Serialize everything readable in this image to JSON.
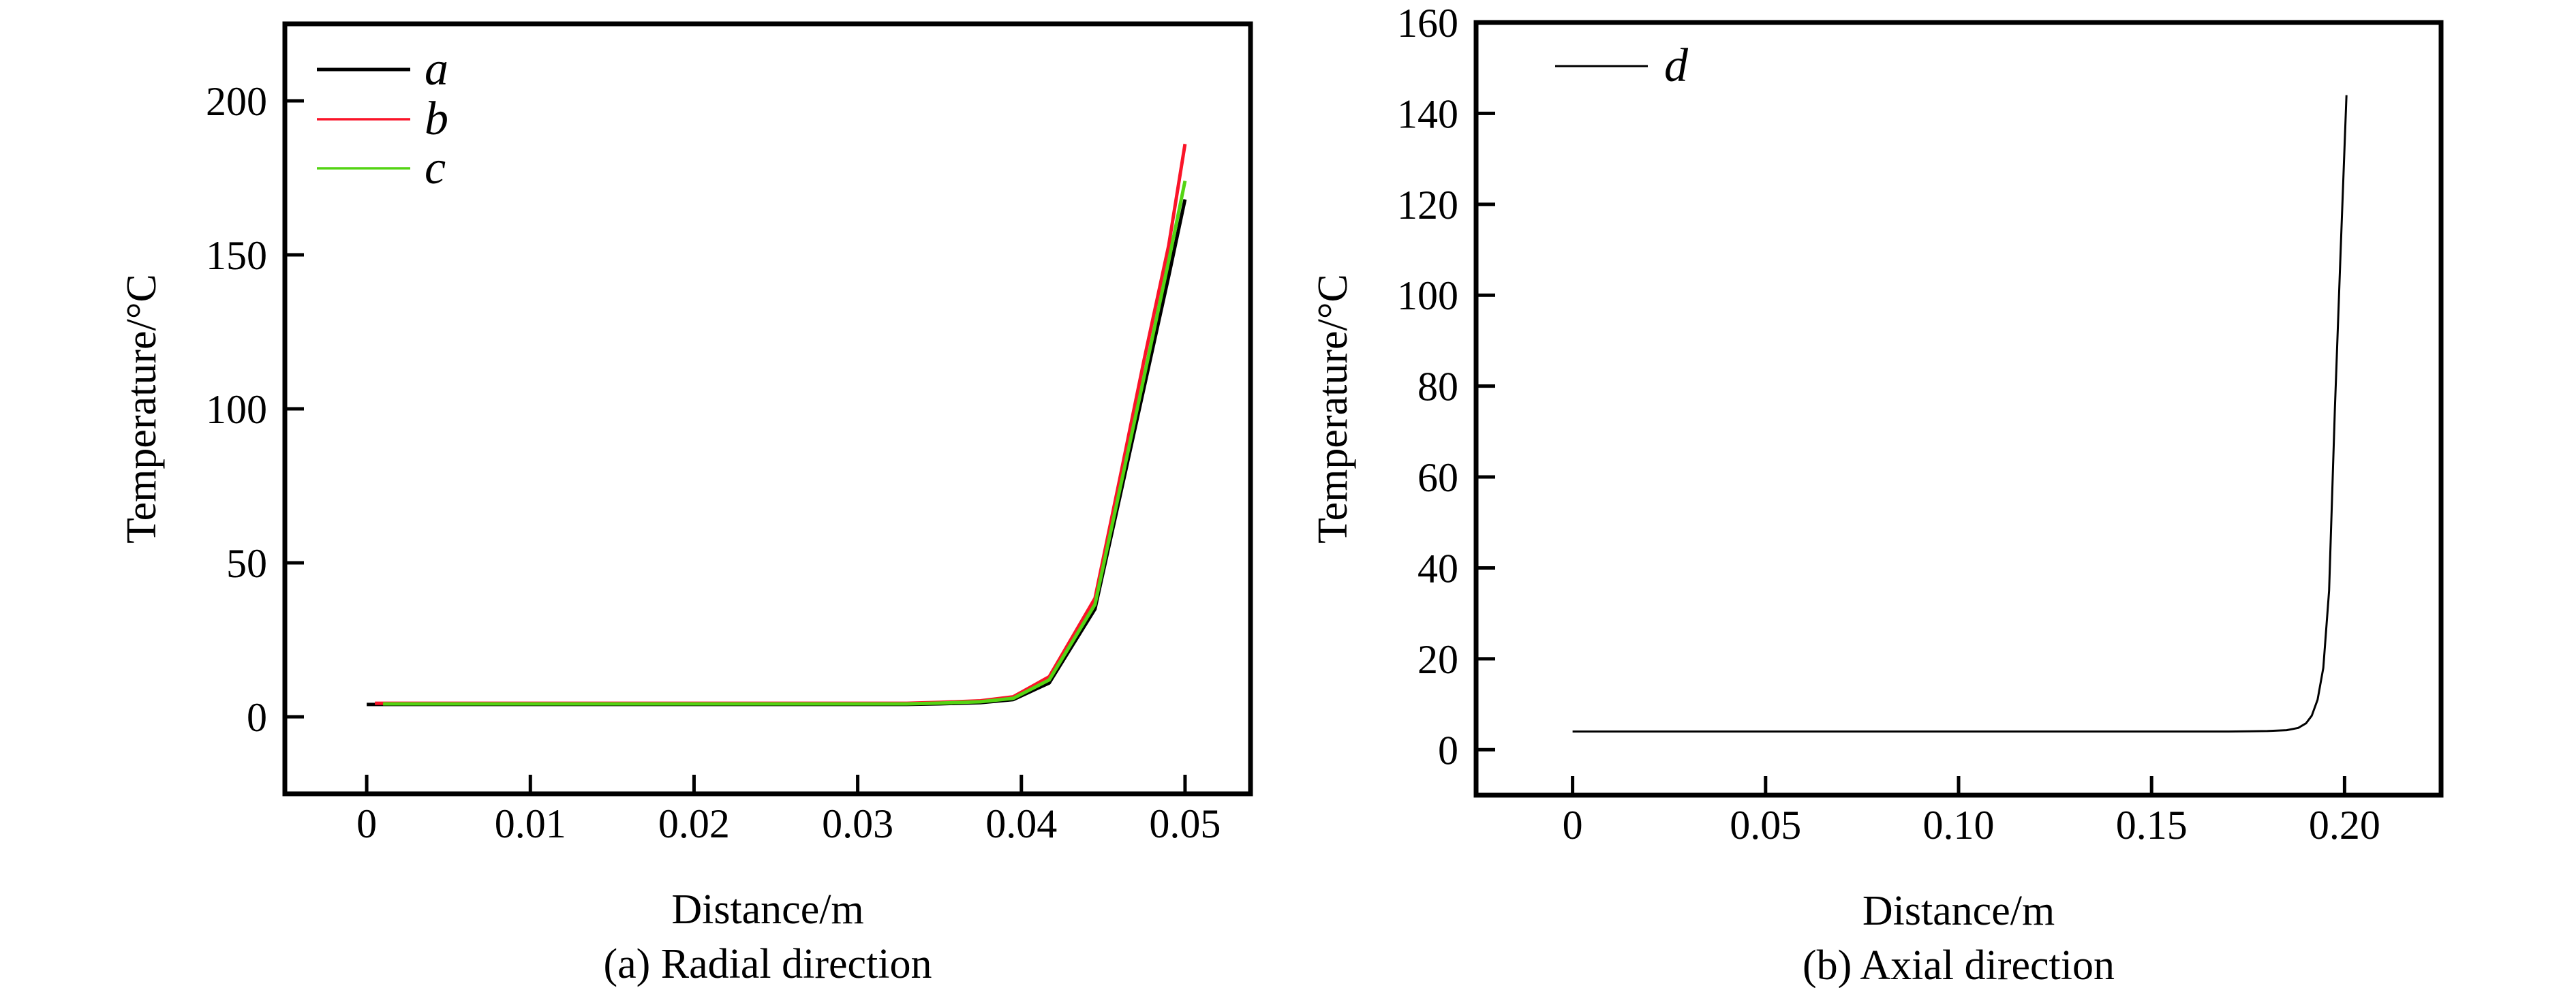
{
  "figure": {
    "background": "#ffffff",
    "text_color": "#000000"
  },
  "chart_data": [
    {
      "type": "line",
      "caption": "(a) Radial direction",
      "xlabel": "Distance/m",
      "ylabel": "Temperature/°C",
      "xlim": [
        -0.005,
        0.054
      ],
      "ylim": [
        -25,
        225
      ],
      "grid": false,
      "legend_position": "top-left-inside",
      "xticks": {
        "values": [
          0,
          0.01,
          0.02,
          0.03,
          0.04,
          0.05
        ],
        "labels": [
          "0",
          "0.01",
          "0.02",
          "0.03",
          "0.04",
          "0.05"
        ]
      },
      "yticks": {
        "values": [
          0,
          50,
          100,
          150,
          200
        ],
        "labels": [
          "0",
          "50",
          "100",
          "150",
          "200"
        ]
      },
      "legend": [
        {
          "label": "a",
          "color": "#000000",
          "line_width": 5
        },
        {
          "label": "b",
          "color": "#fa1428",
          "line_width": 3.5
        },
        {
          "label": "c",
          "color": "#54d413",
          "line_width": 3.5
        }
      ],
      "series": [
        {
          "name": "a",
          "color": "#000000",
          "line_width": 5,
          "x": [
            0,
            0.005,
            0.01,
            0.015,
            0.02,
            0.025,
            0.03,
            0.033,
            0.035,
            0.0375,
            0.0395,
            0.0417,
            0.0445,
            0.046,
            0.0475,
            0.049,
            0.05
          ],
          "y": [
            4,
            4,
            4,
            4,
            4,
            4,
            4,
            4,
            4.2,
            4.6,
            5.6,
            11,
            35,
            71,
            107,
            143,
            168
          ]
        },
        {
          "name": "b",
          "color": "#fa1428",
          "line_width": 5,
          "x": [
            0.0005,
            0.005,
            0.01,
            0.015,
            0.02,
            0.025,
            0.03,
            0.033,
            0.035,
            0.0375,
            0.0395,
            0.0417,
            0.0445,
            0.046,
            0.0475,
            0.049,
            0.05
          ],
          "y": [
            4.4,
            4.4,
            4.4,
            4.4,
            4.4,
            4.4,
            4.4,
            4.4,
            4.7,
            5.2,
            6.5,
            13,
            38.5,
            77,
            116,
            153,
            186
          ]
        },
        {
          "name": "c",
          "color": "#54d413",
          "line_width": 5,
          "x": [
            0.001,
            0.005,
            0.01,
            0.015,
            0.02,
            0.025,
            0.03,
            0.033,
            0.035,
            0.0375,
            0.0395,
            0.0417,
            0.0445,
            0.046,
            0.0475,
            0.049,
            0.05
          ],
          "y": [
            4.2,
            4.2,
            4.2,
            4.2,
            4.2,
            4.2,
            4.2,
            4.2,
            4.45,
            4.9,
            6,
            12,
            36.5,
            73.5,
            110.5,
            148,
            174
          ]
        }
      ]
    },
    {
      "type": "line",
      "caption": "(b) Axial direction",
      "xlabel": "Distance/m",
      "ylabel": "Temperature/°C",
      "xlim": [
        -0.025,
        0.225
      ],
      "ylim": [
        -10,
        160
      ],
      "grid": false,
      "legend_position": "top-left-inside",
      "xticks": {
        "values": [
          0,
          0.05,
          0.1,
          0.15,
          0.2
        ],
        "labels": [
          "0",
          "0.05",
          "0.10",
          "0.15",
          "0.20"
        ]
      },
      "yticks": {
        "values": [
          0,
          20,
          40,
          60,
          80,
          100,
          120,
          140,
          160
        ],
        "labels": [
          "0",
          "20",
          "40",
          "60",
          "80",
          "100",
          "120",
          "140",
          "160"
        ]
      },
      "legend": [
        {
          "label": "d",
          "color": "#000000",
          "line_width": 3
        }
      ],
      "series": [
        {
          "name": "d",
          "color": "#000000",
          "line_width": 3,
          "x": [
            0,
            0.02,
            0.05,
            0.08,
            0.1,
            0.12,
            0.15,
            0.17,
            0.18,
            0.185,
            0.188,
            0.19,
            0.1915,
            0.193,
            0.1945,
            0.196,
            0.1975,
            0.199,
            0.2005
          ],
          "y": [
            4,
            4,
            4,
            4,
            4,
            4,
            4,
            4,
            4.1,
            4.3,
            4.8,
            5.8,
            7.5,
            11,
            18,
            35,
            75,
            110,
            144
          ]
        }
      ]
    }
  ]
}
